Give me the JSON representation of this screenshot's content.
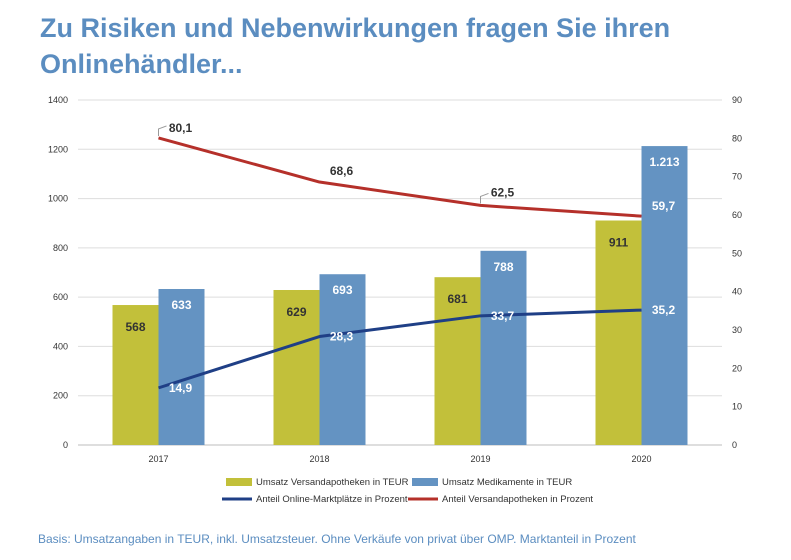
{
  "page": {
    "title": "Zu Risiken und Nebenwirkungen fragen Sie ihren Onlinehändler...",
    "footnote": "Basis: Umsatzangaben in TEUR,  inkl. Umsatzsteuer. Ohne Verkäufe von privat über OMP. Marktanteil in Prozent"
  },
  "chart_data": {
    "type": "bar",
    "categories": [
      "2017",
      "2018",
      "2019",
      "2020"
    ],
    "y_left": {
      "min": 0,
      "max": 1400,
      "step": 200,
      "ticks": [
        "0",
        "200",
        "400",
        "600",
        "800",
        "1000",
        "1200",
        "1400"
      ]
    },
    "y_right": {
      "min": 0,
      "max": 90,
      "step": 10,
      "ticks": [
        "0",
        "10",
        "20",
        "30",
        "40",
        "50",
        "60",
        "70",
        "80",
        "90"
      ]
    },
    "grid": true,
    "legend_position": "bottom",
    "bar_series": [
      {
        "name": "Umsatz Versandapotheken in TEUR",
        "color": "#c2c03a",
        "axis": "left",
        "values": [
          568,
          629,
          681,
          911
        ],
        "labels": [
          "568",
          "629",
          "681",
          "911"
        ]
      },
      {
        "name": "Umsatz Medikamente in TEUR",
        "color": "#6493c2",
        "axis": "left",
        "values": [
          633,
          693,
          788,
          1213
        ],
        "labels": [
          "633",
          "693",
          "788",
          "1.213"
        ]
      }
    ],
    "line_series": [
      {
        "name": "Anteil Online-Marktplätze in Prozent",
        "color": "#1f3f86",
        "axis": "right",
        "values": [
          14.9,
          28.3,
          33.7,
          35.2
        ],
        "labels": [
          "14,9",
          "28,3",
          "33,7",
          "35,2"
        ]
      },
      {
        "name": "Anteil Versandapotheken in Prozent",
        "color": "#b5302a",
        "axis": "right",
        "values": [
          80.1,
          68.6,
          62.5,
          59.7
        ],
        "labels": [
          "80,1",
          "68,6",
          "62,5",
          "59,7"
        ]
      }
    ]
  }
}
